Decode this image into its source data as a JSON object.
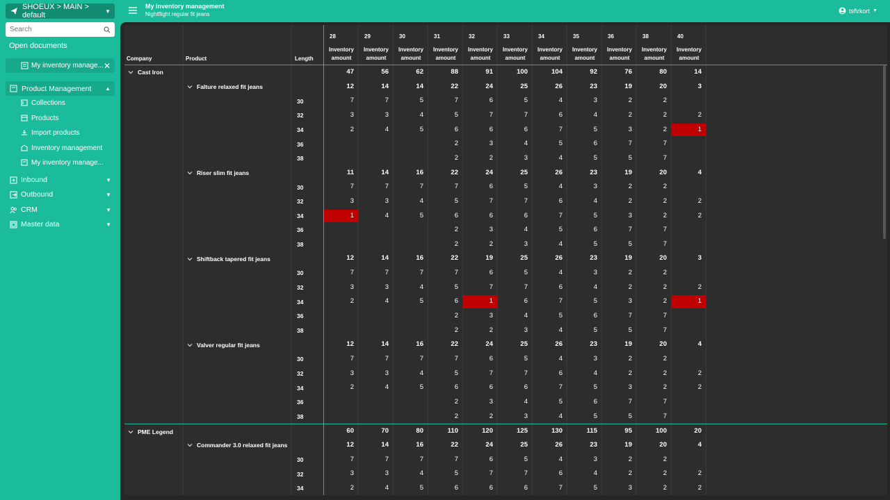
{
  "app": {
    "env_label": "SHOEUX > MAIN > default",
    "search_placeholder": "Search",
    "open_documents": "Open documents",
    "open_tab": "My inventory manage...",
    "user": "tsf\\rkort"
  },
  "sidebar": {
    "product_management": "Product Management",
    "sub_items": [
      {
        "label": "Collections",
        "icon": "collection-icon"
      },
      {
        "label": "Products",
        "icon": "box-icon"
      },
      {
        "label": "Import products",
        "icon": "download-icon"
      },
      {
        "label": "Inventory management",
        "icon": "warehouse-icon"
      },
      {
        "label": "My inventory manage...",
        "icon": "document-icon"
      }
    ],
    "top_items": [
      {
        "label": "Inbound",
        "icon": "inbound-icon"
      },
      {
        "label": "Outbound",
        "icon": "outbound-icon"
      },
      {
        "label": "CRM",
        "icon": "people-icon"
      },
      {
        "label": "Master data",
        "icon": "database-icon"
      }
    ]
  },
  "header": {
    "title": "My inventory management",
    "subtitle": "Nightflight regular fit jeans"
  },
  "grid": {
    "col_company": "Company",
    "col_product": "Product",
    "col_length": "Length",
    "size_cols": [
      "28",
      "29",
      "30",
      "31",
      "32",
      "33",
      "34",
      "35",
      "36",
      "38",
      "40"
    ],
    "measure": "Inventory amount",
    "rows": [
      {
        "level": 0,
        "label": "Cast Iron",
        "values": [
          "47",
          "56",
          "62",
          "88",
          "91",
          "100",
          "104",
          "92",
          "76",
          "80",
          "14"
        ]
      },
      {
        "level": 1,
        "label": "Falture relaxed fit jeans",
        "values": [
          "12",
          "14",
          "14",
          "22",
          "24",
          "25",
          "26",
          "23",
          "19",
          "20",
          "3"
        ]
      },
      {
        "level": 2,
        "label": "30",
        "values": [
          "7",
          "7",
          "5",
          "7",
          "6",
          "5",
          "4",
          "3",
          "2",
          "2",
          ""
        ]
      },
      {
        "level": 2,
        "label": "32",
        "values": [
          "3",
          "3",
          "4",
          "5",
          "7",
          "7",
          "6",
          "4",
          "2",
          "2",
          "2"
        ]
      },
      {
        "level": 2,
        "label": "34",
        "values": [
          "2",
          "4",
          "5",
          "6",
          "6",
          "6",
          "7",
          "5",
          "3",
          "2",
          "1"
        ],
        "red": [
          10
        ]
      },
      {
        "level": 2,
        "label": "36",
        "values": [
          "",
          "",
          "",
          "2",
          "3",
          "4",
          "5",
          "6",
          "7",
          "7",
          ""
        ]
      },
      {
        "level": 2,
        "label": "38",
        "values": [
          "",
          "",
          "",
          "2",
          "2",
          "3",
          "4",
          "5",
          "5",
          "7",
          ""
        ]
      },
      {
        "level": 1,
        "label": "Riser slim fit jeans",
        "values": [
          "11",
          "14",
          "16",
          "22",
          "24",
          "25",
          "26",
          "23",
          "19",
          "20",
          "4"
        ]
      },
      {
        "level": 2,
        "label": "30",
        "values": [
          "7",
          "7",
          "7",
          "7",
          "6",
          "5",
          "4",
          "3",
          "2",
          "2",
          ""
        ]
      },
      {
        "level": 2,
        "label": "32",
        "values": [
          "3",
          "3",
          "4",
          "5",
          "7",
          "7",
          "6",
          "4",
          "2",
          "2",
          "2"
        ]
      },
      {
        "level": 2,
        "label": "34",
        "values": [
          "1",
          "4",
          "5",
          "6",
          "6",
          "6",
          "7",
          "5",
          "3",
          "2",
          "2"
        ],
        "red": [
          0
        ]
      },
      {
        "level": 2,
        "label": "36",
        "values": [
          "",
          "",
          "",
          "2",
          "3",
          "4",
          "5",
          "6",
          "7",
          "7",
          ""
        ]
      },
      {
        "level": 2,
        "label": "38",
        "values": [
          "",
          "",
          "",
          "2",
          "2",
          "3",
          "4",
          "5",
          "5",
          "7",
          ""
        ]
      },
      {
        "level": 1,
        "label": "Shiftback tapered fit jeans",
        "values": [
          "12",
          "14",
          "16",
          "22",
          "19",
          "25",
          "26",
          "23",
          "19",
          "20",
          "3"
        ]
      },
      {
        "level": 2,
        "label": "30",
        "values": [
          "7",
          "7",
          "7",
          "7",
          "6",
          "5",
          "4",
          "3",
          "2",
          "2",
          ""
        ]
      },
      {
        "level": 2,
        "label": "32",
        "values": [
          "3",
          "3",
          "4",
          "5",
          "7",
          "7",
          "6",
          "4",
          "2",
          "2",
          "2"
        ]
      },
      {
        "level": 2,
        "label": "34",
        "values": [
          "2",
          "4",
          "5",
          "6",
          "1",
          "6",
          "7",
          "5",
          "3",
          "2",
          "1"
        ],
        "red": [
          4,
          10
        ]
      },
      {
        "level": 2,
        "label": "36",
        "values": [
          "",
          "",
          "",
          "2",
          "3",
          "4",
          "5",
          "6",
          "7",
          "7",
          ""
        ]
      },
      {
        "level": 2,
        "label": "38",
        "values": [
          "",
          "",
          "",
          "2",
          "2",
          "3",
          "4",
          "5",
          "5",
          "7",
          ""
        ]
      },
      {
        "level": 1,
        "label": "Valver regular fit jeans",
        "values": [
          "12",
          "14",
          "16",
          "22",
          "24",
          "25",
          "26",
          "23",
          "19",
          "20",
          "4"
        ]
      },
      {
        "level": 2,
        "label": "30",
        "values": [
          "7",
          "7",
          "7",
          "7",
          "6",
          "5",
          "4",
          "3",
          "2",
          "2",
          ""
        ]
      },
      {
        "level": 2,
        "label": "32",
        "values": [
          "3",
          "3",
          "4",
          "5",
          "7",
          "7",
          "6",
          "4",
          "2",
          "2",
          "2"
        ]
      },
      {
        "level": 2,
        "label": "34",
        "values": [
          "2",
          "4",
          "5",
          "6",
          "6",
          "6",
          "7",
          "5",
          "3",
          "2",
          "2"
        ]
      },
      {
        "level": 2,
        "label": "36",
        "values": [
          "",
          "",
          "",
          "2",
          "3",
          "4",
          "5",
          "6",
          "7",
          "7",
          ""
        ]
      },
      {
        "level": 2,
        "label": "38",
        "values": [
          "",
          "",
          "",
          "2",
          "2",
          "3",
          "4",
          "5",
          "5",
          "7",
          ""
        ]
      },
      {
        "level": 0,
        "label": "PME Legend",
        "values": [
          "60",
          "70",
          "80",
          "110",
          "120",
          "125",
          "130",
          "115",
          "95",
          "100",
          "20"
        ]
      },
      {
        "level": 1,
        "label": "Commander 3.0 relaxed fit jeans",
        "values": [
          "12",
          "14",
          "16",
          "22",
          "24",
          "25",
          "26",
          "23",
          "19",
          "20",
          "4"
        ]
      },
      {
        "level": 2,
        "label": "30",
        "values": [
          "7",
          "7",
          "7",
          "7",
          "6",
          "5",
          "4",
          "3",
          "2",
          "2",
          ""
        ]
      },
      {
        "level": 2,
        "label": "32",
        "values": [
          "3",
          "3",
          "4",
          "5",
          "7",
          "7",
          "6",
          "4",
          "2",
          "2",
          "2"
        ]
      },
      {
        "level": 2,
        "label": "34",
        "values": [
          "2",
          "4",
          "5",
          "6",
          "6",
          "6",
          "7",
          "5",
          "3",
          "2",
          "2"
        ]
      }
    ]
  },
  "colors": {
    "accent": "#1abc9c",
    "alert": "#c00000"
  }
}
